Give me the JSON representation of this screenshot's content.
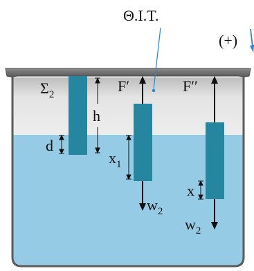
{
  "annotations": {
    "equilibrium_label": "Θ.Ι.Τ.",
    "positive_direction_label": "(+)"
  },
  "bodies": [
    {
      "name": "Σ",
      "name_subscript": "2",
      "height_label": "h",
      "submerged_label": "d"
    },
    {
      "force_label": "F′",
      "weight_label": "w",
      "weight_subscript": "2",
      "displacement_label": "x",
      "displacement_subscript": "1"
    },
    {
      "force_label": "F′′",
      "weight_label": "w",
      "weight_subscript": "2",
      "displacement_label": "x"
    }
  ],
  "colors": {
    "water": "#95cbe5",
    "air": "#d6d6d6",
    "block": "#27869f",
    "ink": "#111111",
    "pointer": "#2a86c8"
  }
}
